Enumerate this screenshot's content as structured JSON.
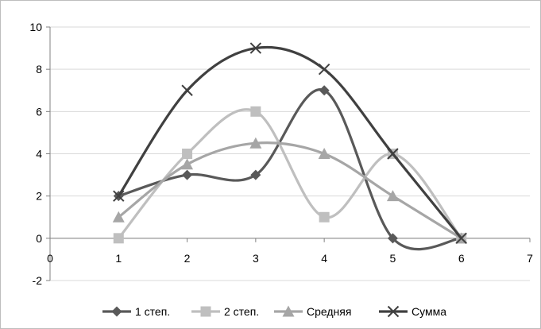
{
  "chart_data": {
    "type": "scatter",
    "title": "",
    "xlabel": "",
    "ylabel": "",
    "xlim": [
      0,
      7
    ],
    "ylim": [
      -2,
      10
    ],
    "x_ticks": [
      "0",
      "1",
      "2",
      "3",
      "4",
      "5",
      "6",
      "7"
    ],
    "y_ticks": [
      "-2",
      "0",
      "2",
      "4",
      "6",
      "8",
      "10"
    ],
    "grid": "horizontal",
    "smooth_lines": true,
    "legend_position": "bottom",
    "series": [
      {
        "name": "1 степ.",
        "marker": "diamond",
        "color": "#595959",
        "points": [
          [
            1,
            2
          ],
          [
            2,
            3
          ],
          [
            3,
            3
          ],
          [
            4,
            7
          ],
          [
            5,
            0
          ],
          [
            6,
            0
          ]
        ]
      },
      {
        "name": "2 степ.",
        "marker": "square",
        "color": "#bfbfbf",
        "points": [
          [
            1,
            0
          ],
          [
            2,
            4
          ],
          [
            3,
            6
          ],
          [
            4,
            1
          ],
          [
            5,
            4
          ],
          [
            6,
            0
          ]
        ]
      },
      {
        "name": "Средняя",
        "marker": "triangle",
        "color": "#a6a6a6",
        "points": [
          [
            1,
            1
          ],
          [
            2,
            3.5
          ],
          [
            3,
            4.5
          ],
          [
            4,
            4
          ],
          [
            5,
            2
          ],
          [
            6,
            0
          ]
        ]
      },
      {
        "name": "Сумма",
        "marker": "x",
        "color": "#404040",
        "points": [
          [
            1,
            2
          ],
          [
            2,
            7
          ],
          [
            3,
            9
          ],
          [
            4,
            8
          ],
          [
            5,
            4
          ],
          [
            6,
            0
          ]
        ]
      }
    ]
  }
}
